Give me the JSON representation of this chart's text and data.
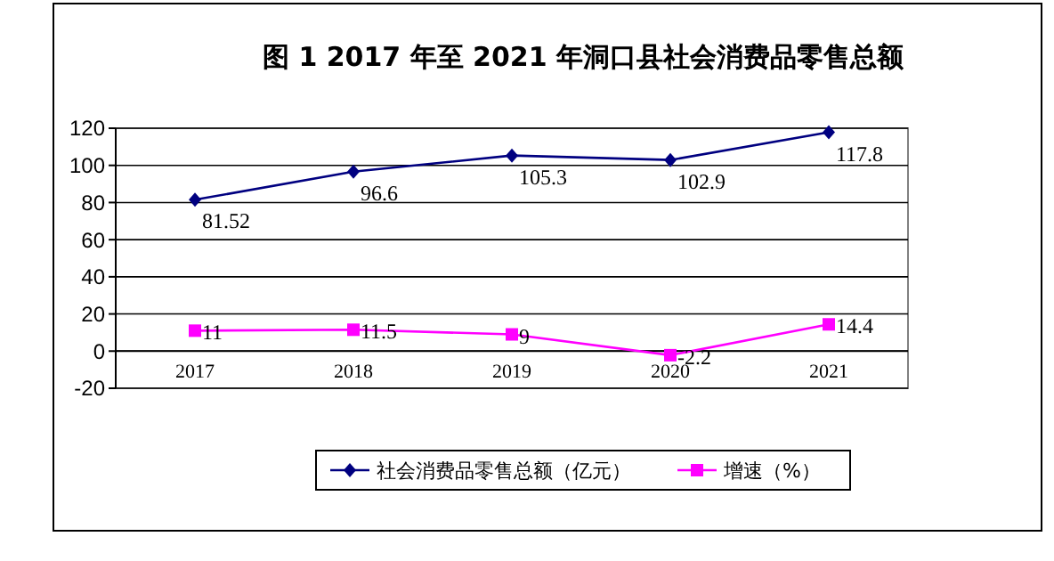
{
  "chart_data": {
    "type": "line",
    "title": "图 1 2017 年至 2021 年洞口县社会消费品零售总额",
    "categories": [
      "2017",
      "2018",
      "2019",
      "2020",
      "2021"
    ],
    "series": [
      {
        "name": "社会消费品零售总额（亿元）",
        "color": "#000080",
        "marker": "diamond",
        "values": [
          81.52,
          96.6,
          105.3,
          102.9,
          117.8
        ]
      },
      {
        "name": "增速（%）",
        "color": "#ff00ff",
        "marker": "square",
        "values": [
          11,
          11.5,
          9,
          -2.2,
          14.4
        ]
      }
    ],
    "ylim": [
      -20,
      120
    ],
    "yticks": [
      -20,
      0,
      20,
      40,
      60,
      80,
      100,
      120
    ],
    "grid": "y",
    "legend": "bottom",
    "data_labels": true
  }
}
